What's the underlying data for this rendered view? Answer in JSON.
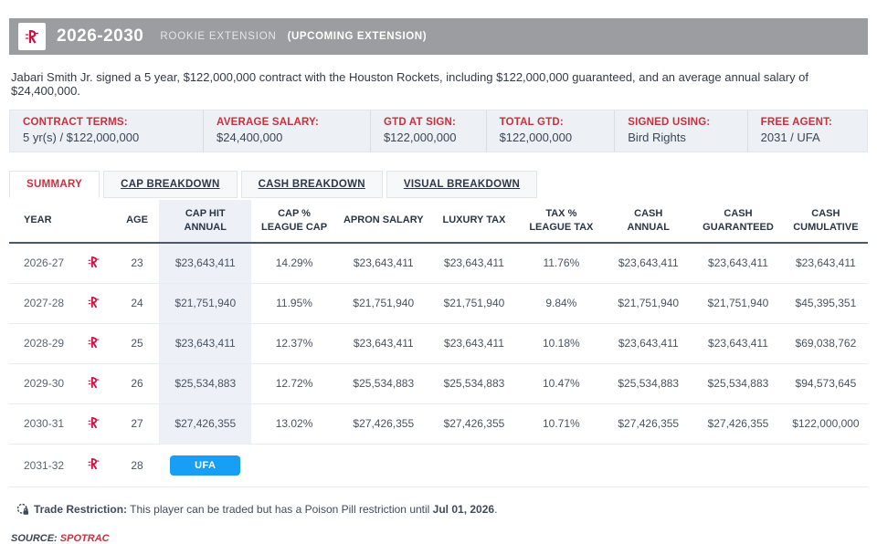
{
  "header": {
    "years": "2026-2030",
    "contract_type": "ROOKIE EXTENSION",
    "note": "(UPCOMING EXTENSION)"
  },
  "summary_sentence": "Jabari Smith Jr. signed a 5 year, $122,000,000 contract with the Houston Rockets, including $122,000,000 guaranteed, and an average annual salary of $24,400,000.",
  "contract_terms": [
    {
      "label": "CONTRACT TERMS:",
      "value": "5 yr(s) / $122,000,000"
    },
    {
      "label": "AVERAGE SALARY:",
      "value": "$24,400,000"
    },
    {
      "label": "GTD AT SIGN:",
      "value": "$122,000,000"
    },
    {
      "label": "TOTAL GTD:",
      "value": "$122,000,000"
    },
    {
      "label": "SIGNED USING:",
      "value": "Bird Rights"
    },
    {
      "label": "FREE AGENT:",
      "value": "2031 / UFA"
    }
  ],
  "tabs": [
    {
      "label": "SUMMARY",
      "active": true
    },
    {
      "label": "CAP BREAKDOWN",
      "active": false
    },
    {
      "label": "CASH BREAKDOWN",
      "active": false
    },
    {
      "label": "VISUAL BREAKDOWN",
      "active": false
    }
  ],
  "table": {
    "columns": [
      "YEAR",
      "",
      "AGE",
      "CAP HIT\nANNUAL",
      "CAP %\nLEAGUE CAP",
      "APRON SALARY",
      "LUXURY TAX",
      "TAX %\nLEAGUE TAX",
      "CASH\nANNUAL",
      "CASH\nGUARANTEED",
      "CASH\nCUMULATIVE"
    ],
    "rows": [
      {
        "year": "2026-27",
        "age": "23",
        "cap_hit": "$23,643,411",
        "cap_pct": "14.29%",
        "apron_salary": "$23,643,411",
        "luxury_tax": "$23,643,411",
        "tax_pct": "11.76%",
        "cash_annual": "$23,643,411",
        "cash_guaranteed": "$23,643,411",
        "cash_cumulative": "$23,643,411"
      },
      {
        "year": "2027-28",
        "age": "24",
        "cap_hit": "$21,751,940",
        "cap_pct": "11.95%",
        "apron_salary": "$21,751,940",
        "luxury_tax": "$21,751,940",
        "tax_pct": "9.84%",
        "cash_annual": "$21,751,940",
        "cash_guaranteed": "$21,751,940",
        "cash_cumulative": "$45,395,351"
      },
      {
        "year": "2028-29",
        "age": "25",
        "cap_hit": "$23,643,411",
        "cap_pct": "12.37%",
        "apron_salary": "$23,643,411",
        "luxury_tax": "$23,643,411",
        "tax_pct": "10.18%",
        "cash_annual": "$23,643,411",
        "cash_guaranteed": "$23,643,411",
        "cash_cumulative": "$69,038,762"
      },
      {
        "year": "2029-30",
        "age": "26",
        "cap_hit": "$25,534,883",
        "cap_pct": "12.72%",
        "apron_salary": "$25,534,883",
        "luxury_tax": "$25,534,883",
        "tax_pct": "10.47%",
        "cash_annual": "$25,534,883",
        "cash_guaranteed": "$25,534,883",
        "cash_cumulative": "$94,573,645"
      },
      {
        "year": "2030-31",
        "age": "27",
        "cap_hit": "$27,426,355",
        "cap_pct": "13.02%",
        "apron_salary": "$27,426,355",
        "luxury_tax": "$27,426,355",
        "tax_pct": "10.71%",
        "cash_annual": "$27,426,355",
        "cash_guaranteed": "$27,426,355",
        "cash_cumulative": "$122,000,000"
      },
      {
        "year": "2031-32",
        "age": "28",
        "badge": "UFA",
        "cap_hit": "",
        "cap_pct": "",
        "apron_salary": "",
        "luxury_tax": "",
        "tax_pct": "",
        "cash_annual": "",
        "cash_guaranteed": "",
        "cash_cumulative": ""
      }
    ]
  },
  "trade_restriction": {
    "label": "Trade Restriction:",
    "text": "This player can be traded but has a Poison Pill restriction until",
    "date": "Jul 01, 2026",
    "suffix": "."
  },
  "source": {
    "label": "SOURCE:",
    "link": "SPOTRAC"
  },
  "colors": {
    "accent_red": "#c9303c",
    "rockets_red": "#ce1141",
    "header_gray": "#9b9da0",
    "highlight_column": "#edf1f7",
    "ufa_blue": "#169ff5",
    "terms_bg": "#edf0f5"
  }
}
